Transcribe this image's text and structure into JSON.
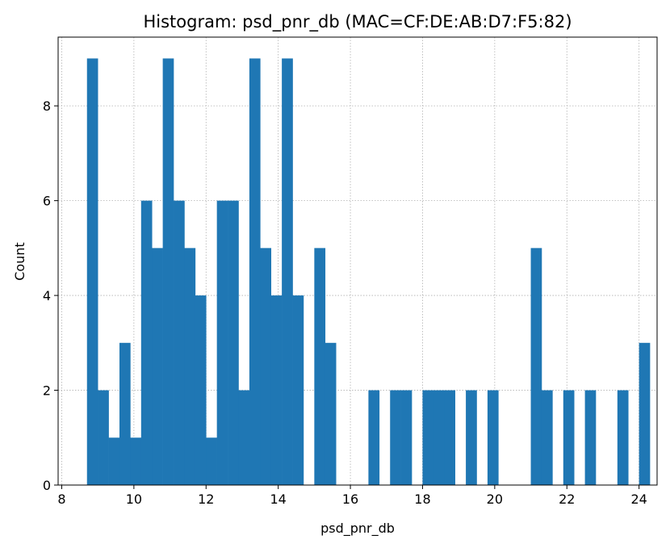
{
  "chart_data": {
    "type": "bar",
    "title": "Histogram: psd_pnr_db (MAC=CF:DE:AB:D7:F5:82)",
    "xlabel": "psd_pnr_db",
    "ylabel": "Count",
    "xlim": [
      7.9,
      24.5
    ],
    "ylim": [
      0,
      9.45
    ],
    "xticks": [
      8,
      10,
      12,
      14,
      16,
      18,
      20,
      22,
      24
    ],
    "yticks": [
      0,
      2,
      4,
      6,
      8
    ],
    "grid": true,
    "bar_color": "#1f77b4",
    "bin_start": 8.7,
    "bin_width": 0.3,
    "counts": [
      9,
      2,
      1,
      3,
      1,
      6,
      5,
      9,
      6,
      5,
      4,
      1,
      6,
      6,
      2,
      9,
      5,
      4,
      9,
      4,
      0,
      5,
      3,
      0,
      0,
      0,
      2,
      0,
      2,
      2,
      0,
      2,
      2,
      2,
      0,
      2,
      0,
      2,
      0,
      0,
      0,
      5,
      2,
      0,
      2,
      0,
      2,
      0,
      0,
      2,
      0,
      3
    ]
  }
}
